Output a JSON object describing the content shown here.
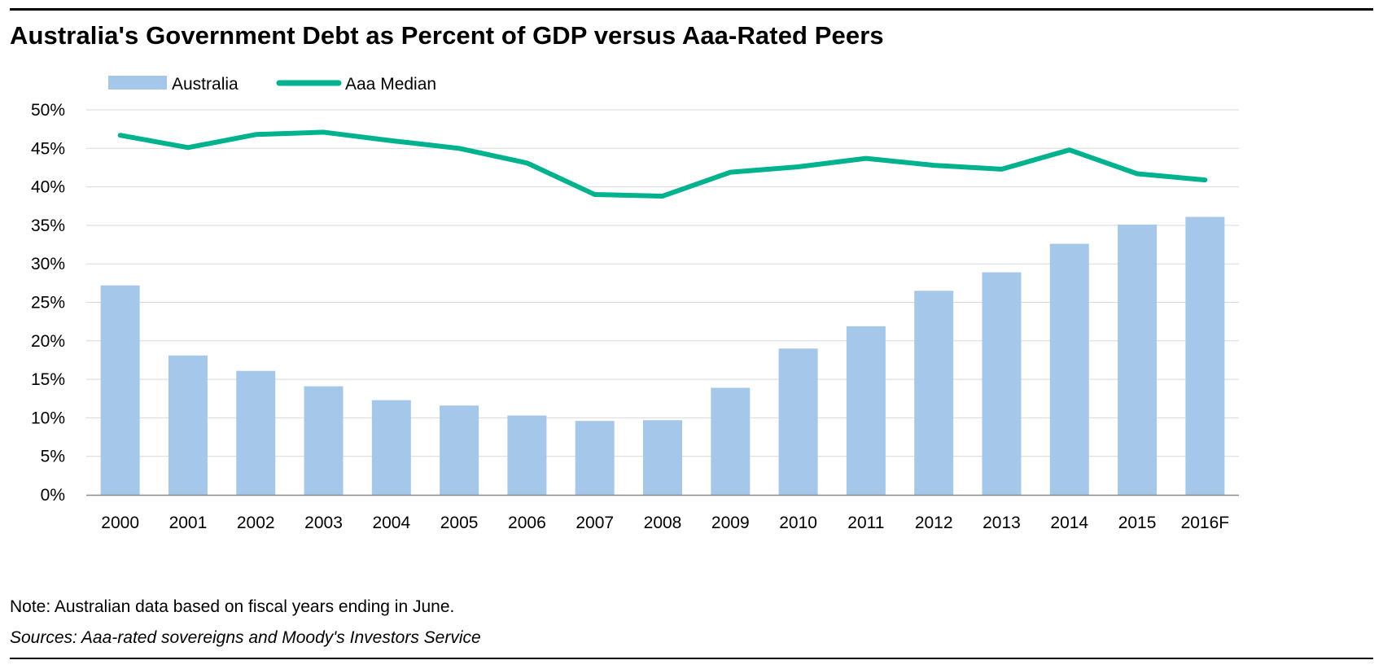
{
  "chart_data": {
    "type": "bar",
    "title": "Australia's Government Debt as Percent of GDP versus Aaa-Rated Peers",
    "categories": [
      "2000",
      "2001",
      "2002",
      "2003",
      "2004",
      "2005",
      "2006",
      "2007",
      "2008",
      "2009",
      "2010",
      "2011",
      "2012",
      "2013",
      "2014",
      "2015",
      "2016F"
    ],
    "series": [
      {
        "name": "Australia",
        "kind": "bar",
        "color": "#a5c8ea",
        "values": [
          27.2,
          18.1,
          16.1,
          14.1,
          12.3,
          11.6,
          10.3,
          9.6,
          9.7,
          13.9,
          19.0,
          21.9,
          26.5,
          28.9,
          32.6,
          35.1,
          36.1
        ]
      },
      {
        "name": "Aaa Median",
        "kind": "line",
        "color": "#00b38e",
        "values": [
          46.7,
          45.1,
          46.8,
          47.1,
          46.0,
          45.0,
          43.1,
          39.0,
          38.8,
          41.9,
          42.6,
          43.7,
          42.8,
          42.3,
          44.8,
          41.7,
          40.9
        ]
      }
    ],
    "ylim": [
      0,
      50
    ],
    "yticks": [
      0,
      5,
      10,
      15,
      20,
      25,
      30,
      35,
      40,
      45,
      50
    ],
    "ytick_labels": [
      "0%",
      "5%",
      "10%",
      "15%",
      "20%",
      "25%",
      "30%",
      "35%",
      "40%",
      "45%",
      "50%"
    ],
    "xlabel": "",
    "ylabel": "",
    "grid": true,
    "legend_position": "top-left"
  },
  "note": "Note: Australian data based on fiscal years ending in June.",
  "sources": "Sources: Aaa-rated sovereigns and Moody's Investors Service"
}
